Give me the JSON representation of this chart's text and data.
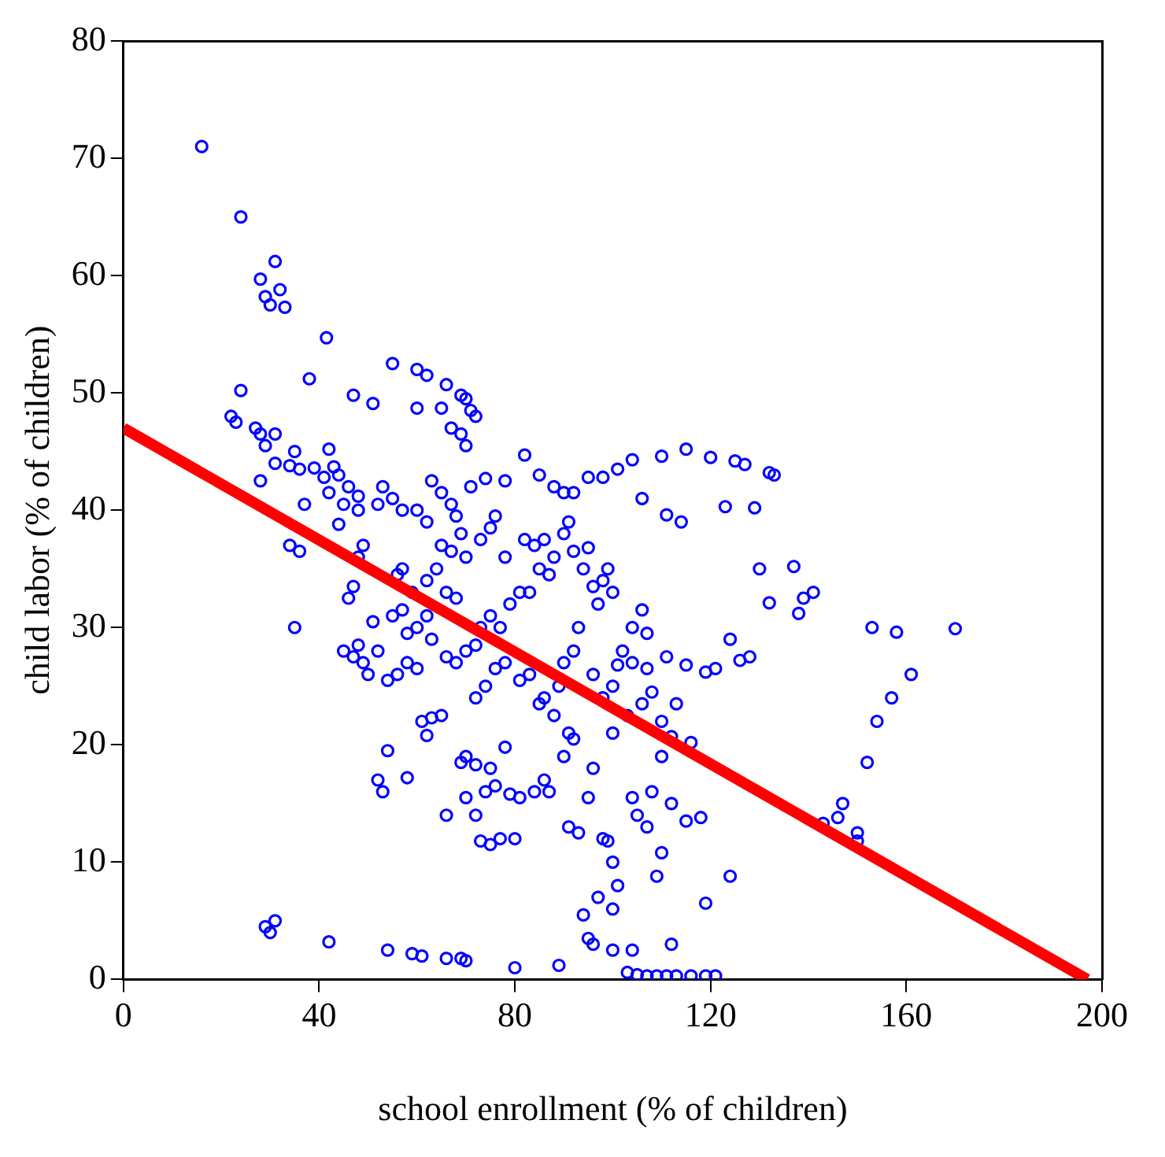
{
  "chart_data": {
    "type": "scatter",
    "xlabel": "school enrollment (% of children)",
    "ylabel": "child labor (% of children)",
    "xlim": [
      0,
      200
    ],
    "xticks": [
      0,
      40,
      80,
      120,
      160,
      200
    ],
    "ylim": [
      0,
      80
    ],
    "yticks": [
      0,
      10,
      20,
      30,
      40,
      50,
      60,
      70,
      80
    ],
    "grid": false,
    "legend": false,
    "series": [
      {
        "color": "#0000ff",
        "marker": "circle",
        "x": [
          16,
          24,
          31,
          28,
          29,
          32,
          30,
          33,
          41.5,
          38,
          24,
          22,
          23,
          27,
          28,
          31,
          29,
          28,
          31,
          34,
          36,
          35,
          39,
          41,
          42,
          43,
          42,
          45,
          48,
          47,
          51,
          55,
          60,
          62,
          65,
          60,
          66,
          69,
          70,
          71,
          72,
          67,
          69,
          70,
          74,
          71,
          78,
          82,
          85,
          88,
          90,
          92,
          95,
          98,
          101,
          104,
          110,
          115,
          120,
          125,
          127,
          132,
          133,
          106,
          111,
          114,
          123,
          129,
          130,
          137,
          132,
          139,
          138,
          141,
          153,
          158,
          170,
          161,
          157,
          154,
          152,
          150,
          147,
          146,
          143,
          150,
          124,
          126,
          128,
          121,
          119,
          115,
          113,
          112,
          116,
          118,
          124,
          119,
          115,
          112,
          110,
          109,
          107,
          105,
          104,
          108,
          110,
          107,
          104,
          101,
          103,
          106,
          100,
          96,
          95,
          93,
          91,
          98,
          99,
          100,
          101,
          100,
          97,
          94,
          95,
          100,
          96,
          103,
          105,
          107,
          109,
          111,
          113,
          116,
          119,
          121,
          104,
          112,
          29,
          30,
          31,
          42,
          54,
          59,
          61,
          66,
          69,
          70,
          80,
          89,
          54,
          52,
          58,
          53,
          66,
          70,
          72,
          73,
          75,
          77,
          80,
          84,
          79,
          81,
          74,
          76,
          87,
          86,
          69,
          70,
          72,
          75,
          62,
          61,
          63,
          65,
          78,
          90,
          91,
          92,
          88,
          86,
          85,
          83,
          81,
          78,
          76,
          74,
          72,
          60,
          58,
          56,
          54,
          50,
          49,
          47,
          45,
          48,
          51,
          52,
          55,
          57,
          59,
          56,
          57,
          62,
          63,
          66,
          68,
          70,
          72,
          73,
          75,
          77,
          79,
          81,
          83,
          85,
          87,
          88,
          86,
          84,
          82,
          90,
          91,
          92,
          95,
          94,
          96,
          97,
          98,
          99,
          100,
          93,
          92,
          90,
          89,
          96,
          98,
          100,
          102,
          104,
          106,
          107,
          108,
          110,
          111,
          34,
          35,
          36,
          37,
          44,
          46,
          47,
          48,
          52,
          53,
          55,
          57,
          60,
          62,
          63,
          65,
          67,
          68,
          69,
          65,
          67,
          70,
          73,
          75,
          76,
          78,
          64,
          62,
          66,
          68,
          58,
          60,
          44,
          46,
          48,
          49
        ],
        "values": [
          71,
          65,
          61.2,
          59.7,
          58.2,
          58.8,
          57.5,
          57.3,
          54.7,
          51.2,
          50.2,
          48,
          47.5,
          47,
          46.5,
          46.5,
          45.5,
          42.5,
          44,
          43.8,
          43.5,
          45,
          43.6,
          42.8,
          45.2,
          43.7,
          41.5,
          40.5,
          41.2,
          49.8,
          49.1,
          52.5,
          52,
          51.5,
          48.7,
          48.7,
          50.7,
          49.8,
          49.5,
          48.5,
          48,
          47,
          46.5,
          45.5,
          42.7,
          42,
          42.5,
          44.7,
          43,
          42,
          41.5,
          41.5,
          42.8,
          42.8,
          43.5,
          44.3,
          44.6,
          45.2,
          44.5,
          44.2,
          43.9,
          43.2,
          43,
          41,
          39.6,
          39,
          40.3,
          40.2,
          35,
          35.2,
          32.1,
          32.5,
          31.2,
          33,
          30,
          29.6,
          29.9,
          26,
          24,
          22,
          18.5,
          12.5,
          15,
          13.8,
          13.3,
          11.8,
          29,
          27.2,
          27.5,
          26.5,
          26.2,
          26.8,
          23.5,
          20.7,
          20.2,
          13.8,
          8.8,
          6.5,
          13.5,
          15,
          10.8,
          8.8,
          13,
          14,
          15.5,
          16,
          19,
          26.5,
          27,
          26.8,
          22.5,
          23.5,
          21,
          18,
          15.5,
          12.5,
          13,
          12,
          11.8,
          10,
          8,
          6,
          7,
          5.5,
          3.5,
          2.5,
          3,
          0.6,
          0.4,
          0.3,
          0.3,
          0.3,
          0.3,
          0.3,
          0.3,
          0.3,
          2.5,
          3,
          4.5,
          4,
          5,
          3.2,
          2.5,
          2.2,
          2,
          1.8,
          1.8,
          1.6,
          1,
          1.2,
          19.5,
          17,
          17.2,
          16,
          14,
          15.5,
          14,
          11.8,
          11.5,
          12,
          12,
          16,
          15.8,
          15.5,
          16,
          16.5,
          16,
          17,
          18.5,
          19,
          18.3,
          18,
          20.8,
          22,
          22.3,
          22.5,
          19.8,
          19,
          21,
          20.5,
          22.5,
          24,
          23.5,
          26,
          25.5,
          27,
          26.5,
          25,
          24,
          26.5,
          27,
          26,
          25.5,
          26,
          27,
          27.5,
          28,
          28.5,
          30.5,
          28,
          31,
          31.5,
          33,
          34.5,
          35,
          31,
          29,
          27.5,
          27,
          28,
          28.5,
          30,
          31,
          30,
          32,
          33,
          33,
          35,
          34.5,
          36,
          37.5,
          37,
          37.5,
          38,
          39,
          36.5,
          36.8,
          35,
          33.5,
          32,
          34,
          35,
          33,
          30,
          28,
          27,
          25,
          26,
          24,
          25,
          28,
          30,
          31.5,
          29.5,
          24.5,
          22,
          27.5,
          37,
          30,
          36.5,
          40.5,
          38.8,
          32.5,
          33.5,
          36,
          40.5,
          42,
          41,
          40,
          40,
          39,
          42.5,
          41.5,
          40.5,
          39.5,
          38,
          37,
          36.5,
          36,
          37.5,
          38.5,
          39.5,
          36,
          35,
          34,
          33,
          32.5,
          29.5,
          30,
          43,
          42,
          40,
          37
        ]
      },
      {
        "type": "line",
        "color": "#ff0000",
        "marker": "none",
        "line_style": "solid",
        "x": [
          0,
          197
        ],
        "values": [
          47,
          0
        ]
      }
    ]
  }
}
